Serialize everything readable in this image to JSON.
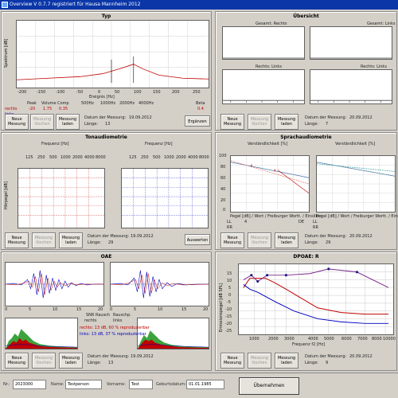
{
  "window": {
    "title": "Overview V 0.7.7 registriert für Hausa Mannheim 2012"
  },
  "panels": {
    "typ": {
      "title": "Typ",
      "y_axis_label": "Spektrum [dB]",
      "x_axis_label": "Ereignis [Hz]",
      "x_ticks": [
        "-200",
        "-150",
        "-100",
        "-50",
        "0",
        "50",
        "100",
        "150",
        "200",
        "250"
      ],
      "col_headers": [
        "Peak",
        "Volume",
        "Comp",
        "500Hz",
        "1000Hz",
        "2000Hz",
        "4000Hz",
        "Beta"
      ],
      "row_rechts": {
        "label": "rechts",
        "values": [
          "-20",
          "1.75",
          "0.35",
          "",
          "",
          "",
          "",
          "0.4"
        ]
      },
      "row_links": {
        "label": "links",
        "values": [
          "",
          "",
          "",
          "",
          "",
          "",
          "",
          ""
        ]
      },
      "buttons": [
        "Neue\nMessung",
        "Messung\nlöschen",
        "Messung\nladen"
      ],
      "date_label": "Datum der Messung:",
      "date_value": "19.09.2012",
      "count_label": "Länge:",
      "count_value": "13",
      "extra_button": "Ergänzen"
    },
    "ubersicht": {
      "title": "Übersicht",
      "subplots": [
        "Gesamt: Rechts",
        "Gesamt: Links",
        "Rechts: Links",
        "Rechts: Links"
      ],
      "buttons": [
        "Neue\nMessung",
        "Messung\nlöschen",
        "Messung\nladen"
      ],
      "date_label": "Datum der Messung:",
      "date_value": "20.09.2012",
      "count_label": "Länge:",
      "count_value": "7"
    },
    "tonaudiometrie": {
      "title": "Tonaudiometrie",
      "plot_titles": [
        "Frequenz [Hz]",
        "Frequenz [Hz]"
      ],
      "x_ticks": [
        "125",
        "250",
        "500",
        "1000",
        "2000",
        "4000",
        "8000"
      ],
      "y_label": "Hörpegel [dB]",
      "buttons": [
        "Neue\nMessung",
        "Messung\nlöschen",
        "Messung\nladen"
      ],
      "date_label": "Datum der Messung:",
      "date_value": "19.09.2012",
      "count_label": "Länge:",
      "count_value": "29",
      "extra_button": "Auswerten"
    },
    "sprachaudiometrie": {
      "title": "Sprachaudiometrie",
      "plot_titles": [
        "Verständlichkeit [%]",
        "Verständlichkeit [%]"
      ],
      "y_ticks": [
        "100",
        "80",
        "60",
        "40",
        "20",
        "0"
      ],
      "x_caption": "Pegel [dB] / Wort / Freiburger Wortt. / Einsilber",
      "left_values": {
        "ll": "LL",
        "ll_val": "4",
        "d": "DE",
        "rr": "RR",
        "rr_val": ""
      },
      "right_values": {
        "ll": "LL",
        "rr": "RR"
      },
      "buttons": [
        "Neue\nMessung",
        "Messung\nlöschen",
        "Messung\nladen"
      ],
      "date_label": "Datum der Messung:",
      "date_value": "20.09.2012",
      "count_label": "Länge:",
      "count_value": "29"
    },
    "oae": {
      "title": "OAE",
      "waveform_titles": [
        "",
        ""
      ],
      "x_ticks_left": [
        "0",
        "5",
        "10",
        "15",
        "20"
      ],
      "x_ticks_right": [
        "0",
        "5",
        "10",
        "15",
        "20"
      ],
      "snr_label": "SNR Rausch",
      "rauschp_label": "Rauschp.",
      "rechts_label": "rechts",
      "links_label": "links",
      "legend_red": "rechts: 13 dB, 60 % reproduzierbar",
      "legend_blue": "links: 13 dB, 37 % reproduzierbar",
      "buttons": [
        "Neue\nMessung",
        "Messung\nlöschen",
        "Messung\nladen"
      ],
      "date_label": "Datum der Messung:",
      "date_value": "19.09.2012",
      "count_label": "Länge:",
      "count_value": "13"
    },
    "dpoae": {
      "title": "DPOAE: R",
      "y_label": "Emissionspegel [dB SPL]",
      "x_label": "Frequenz f2 [Hz]",
      "y_ticks": [
        "15",
        "10",
        "5",
        "0",
        "-5",
        "-10",
        "-15",
        "-20",
        "-25"
      ],
      "x_ticks": [
        "1000",
        "2000",
        "3000",
        "4000",
        "5000",
        "6000",
        "7000",
        "8000",
        "10000"
      ],
      "buttons": [
        "Neue\nMessung",
        "Messung\nlöschen",
        "Messung\nladen"
      ],
      "date_label": "Datum der Messung:",
      "date_value": "20.09.2012",
      "count_label": "Länge:",
      "count_value": "9"
    }
  },
  "status_bar": {
    "id_label": "Nr.:",
    "id_value": "2023000",
    "name_label": "Name:",
    "name_value": "Testperson",
    "vorname_label": "Vorname:",
    "vorname_value": "Test",
    "geburtsdatum_label": "Geburtsdatum:",
    "geburtsdatum_value": "01.01.1985",
    "done_button": "Übernehmen"
  },
  "colors": {
    "title_bar": "#0a36a8",
    "series_red": "#c00000",
    "series_blue": "#0000c0",
    "grid_red": "#e08080",
    "grid_blue": "#8080e0"
  }
}
